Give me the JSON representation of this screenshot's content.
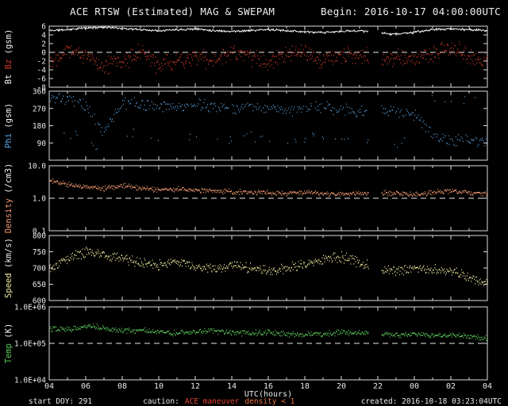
{
  "header": {
    "title": "ACE RTSW (Estimated) MAG & SWEPAM",
    "begin": "Begin: 2016-10-17 04:00:00UTC"
  },
  "footer": {
    "start_doy": "start DOY: 291",
    "caution_label": "caution:",
    "caution_maneuver": "ACE maneuver",
    "caution_density": "density < 1",
    "created": "created: 2016-10-18 03:23:04UTC"
  },
  "colors": {
    "background": "#000000",
    "axis": "#dcdcdc",
    "text": "#f0f0f0",
    "bt": "#f2f2f2",
    "bz": "#cc3b28",
    "phi": "#5ba3e0",
    "density": "#f0996f",
    "speed": "#f2efa0",
    "temp": "#5bc85b",
    "caution_red": "#e04434",
    "caution_orange": "#e8703a"
  },
  "chart_data": {
    "type": "scatter",
    "title": "ACE RTSW (Estimated) MAG & SWEPAM",
    "xlabel": "UTC(hours)",
    "x_range_hours": [
      4,
      28
    ],
    "x_ticks": [
      "04",
      "06",
      "08",
      "10",
      "12",
      "14",
      "16",
      "18",
      "20",
      "22",
      "00",
      "02",
      "04"
    ],
    "anchor_hours_note": "series values are hourly estimates from 04:00 UTC 2016-10-17 to 04:00 UTC 2016-10-18",
    "gaps": [
      [
        21.5,
        22.2
      ]
    ],
    "panels": [
      {
        "id": "bt-bz",
        "ylabel_parts": [
          {
            "text": "Bt ",
            "color": "#f2f2f2"
          },
          {
            "text": "Bz",
            "color": "#cc3b28"
          },
          {
            "text": " (gsm)",
            "color": "#f2f2f2"
          }
        ],
        "scale": "linear",
        "ylim": [
          -8,
          6
        ],
        "dashed_at": 0,
        "yticks": [
          {
            "v": 6,
            "label": "6"
          },
          {
            "v": 4,
            "label": "4"
          },
          {
            "v": 2,
            "label": "2"
          },
          {
            "v": 0,
            "label": "0"
          },
          {
            "v": -2,
            "label": "-2"
          },
          {
            "v": -4,
            "label": "-4"
          },
          {
            "v": -6,
            "label": "-6"
          },
          {
            "v": -8,
            "label": "-8"
          }
        ],
        "series": [
          {
            "name": "Bt",
            "color": "#f2f2f2",
            "draw": "line",
            "step_min": 2,
            "noise": 0.3,
            "seed": 11,
            "values": [
              5.0,
              5.2,
              5.6,
              5.8,
              5.5,
              5.2,
              5.0,
              5.2,
              5.4,
              5.0,
              4.8,
              5.0,
              5.2,
              5.0,
              4.7,
              4.5,
              4.8,
              5.0,
              4.4,
              4.2,
              4.6,
              5.2,
              5.4,
              5.2,
              5.0
            ]
          },
          {
            "name": "Bz",
            "color": "#cc3b28",
            "draw": "dots",
            "step_min": 2,
            "noise": 2.4,
            "seed": 22,
            "values": [
              -2,
              1,
              -1,
              -3,
              -2,
              0,
              -3,
              -2,
              -1,
              -2,
              0,
              -1,
              -2,
              -1,
              0,
              -2,
              -1,
              0,
              -2,
              -1,
              -2,
              0,
              1,
              -1,
              -2
            ]
          }
        ]
      },
      {
        "id": "phi",
        "ylabel_parts": [
          {
            "text": "Phi",
            "color": "#5ba3e0"
          },
          {
            "text": " (gsm)",
            "color": "#f2f2f2"
          }
        ],
        "scale": "linear",
        "ylim": [
          0,
          360
        ],
        "wrap360": true,
        "yticks": [
          {
            "v": 360,
            "label": "360"
          },
          {
            "v": 270,
            "label": "270"
          },
          {
            "v": 180,
            "label": "180"
          },
          {
            "v": 90,
            "label": "90"
          }
        ],
        "series": [
          {
            "name": "Phi",
            "color": "#5ba3e0",
            "draw": "dots",
            "step_min": 3,
            "noise": 38,
            "seed": 33,
            "outlier_prob": 0.1,
            "outlier_offset": -160,
            "values": [
              330,
              310,
              280,
              150,
              300,
              290,
              280,
              270,
              290,
              280,
              270,
              280,
              270,
              260,
              270,
              280,
              260,
              250,
              260,
              250,
              240,
              130,
              100,
              110,
              100
            ]
          }
        ]
      },
      {
        "id": "density",
        "ylabel_parts": [
          {
            "text": "Density",
            "color": "#f0996f"
          },
          {
            "text": " (/cm3)",
            "color": "#f2f2f2"
          }
        ],
        "scale": "log",
        "ylim": [
          0.1,
          10
        ],
        "dashed_at": 1.0,
        "yticks": [
          {
            "v": 10,
            "label": "10.0"
          },
          {
            "v": 1,
            "label": "1.0"
          },
          {
            "v": 0.1,
            "label": "0.1"
          }
        ],
        "series": [
          {
            "name": "Density",
            "color": "#f0996f",
            "draw": "dots",
            "step_min": 2,
            "noise_dex": 0.09,
            "seed": 44,
            "values": [
              3.5,
              2.6,
              2.2,
              2.0,
              2.4,
              2.0,
              1.8,
              1.9,
              1.8,
              1.7,
              1.6,
              1.5,
              1.5,
              1.4,
              1.5,
              1.4,
              1.3,
              1.4,
              1.5,
              1.4,
              1.3,
              1.5,
              1.7,
              1.5,
              1.3
            ]
          }
        ]
      },
      {
        "id": "speed",
        "ylabel_parts": [
          {
            "text": "Speed",
            "color": "#f2efa0"
          },
          {
            "text": " (km/s)",
            "color": "#f2f2f2"
          }
        ],
        "scale": "linear",
        "ylim": [
          600,
          800
        ],
        "yticks": [
          {
            "v": 800,
            "label": "800"
          },
          {
            "v": 750,
            "label": "750"
          },
          {
            "v": 700,
            "label": "700"
          },
          {
            "v": 650,
            "label": "650"
          },
          {
            "v": 600,
            "label": "600"
          }
        ],
        "series": [
          {
            "name": "Speed",
            "color": "#f2efa0",
            "draw": "dots",
            "step_min": 2,
            "noise": 18,
            "seed": 55,
            "values": [
              700,
              730,
              750,
              740,
              730,
              715,
              710,
              720,
              705,
              695,
              710,
              700,
              690,
              700,
              710,
              725,
              735,
              715,
              700,
              690,
              700,
              695,
              690,
              670,
              655
            ]
          }
        ]
      },
      {
        "id": "temp",
        "ylabel_parts": [
          {
            "text": "Temp",
            "color": "#5bc85b"
          },
          {
            "text": " (K)",
            "color": "#f2f2f2"
          }
        ],
        "scale": "log",
        "ylim": [
          10000,
          1000000
        ],
        "dashed_at": 100000,
        "yticks": [
          {
            "v": 1000000,
            "label": "1.0E+06"
          },
          {
            "v": 100000,
            "label": "1.0E+05"
          },
          {
            "v": 10000,
            "label": "1.0E+04"
          }
        ],
        "series": [
          {
            "name": "Temp",
            "color": "#5bc85b",
            "draw": "dots",
            "step_min": 2,
            "noise_dex": 0.09,
            "seed": 66,
            "values": [
              260000,
              240000,
              300000,
              260000,
              220000,
              230000,
              210000,
              190000,
              200000,
              220000,
              200000,
              190000,
              200000,
              180000,
              170000,
              180000,
              200000,
              190000,
              180000,
              170000,
              180000,
              160000,
              170000,
              150000,
              140000
            ]
          }
        ]
      }
    ]
  }
}
